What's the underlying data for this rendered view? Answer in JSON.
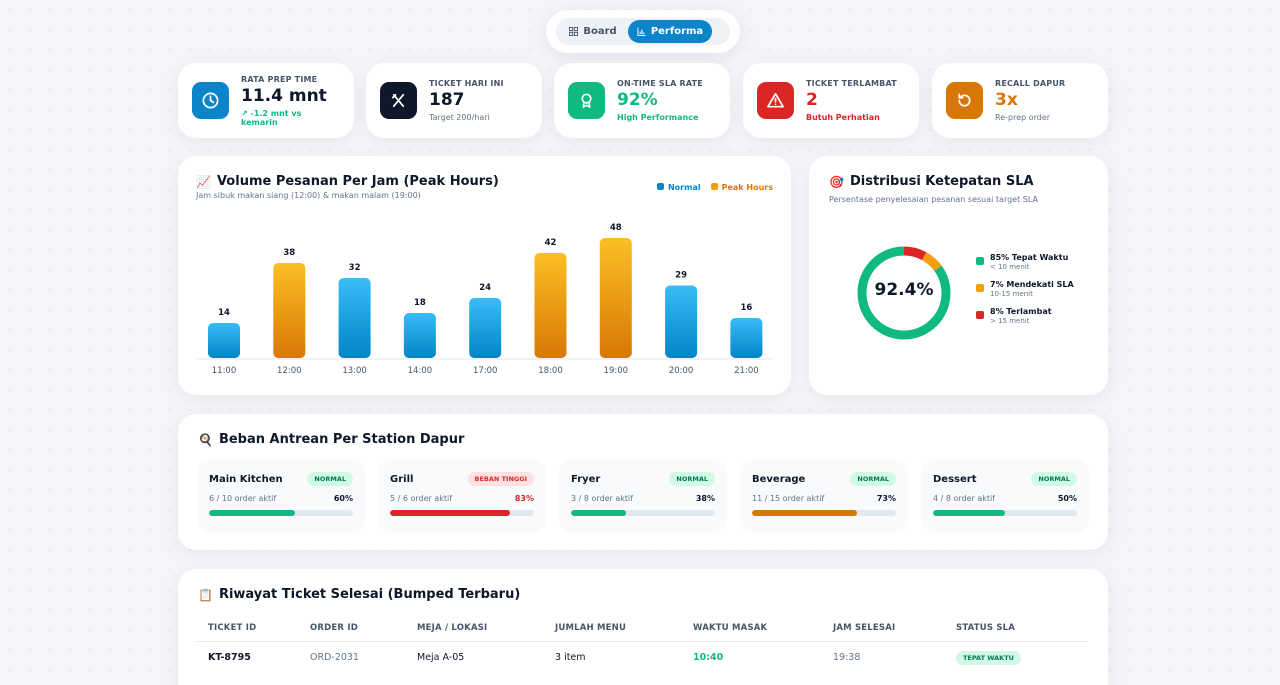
{
  "toggle": {
    "board_label": "Board",
    "perf_label": "Performa"
  },
  "kpis": [
    {
      "label": "RATA PREP TIME",
      "value": "11.4 mnt",
      "sub": "-1.2 mnt vs kemarin",
      "icon": "clock-icon",
      "color": "#0b84c9"
    },
    {
      "label": "TICKET HARI INI",
      "value": "187",
      "sub": "Target 200/hari",
      "icon": "utensils-icon",
      "color": "#0f172a"
    },
    {
      "label": "ON-TIME SLA RATE",
      "value": "92%",
      "sub": "High Performance",
      "icon": "award-icon",
      "color": "#10b981"
    },
    {
      "label": "TICKET TERLAMBAT",
      "value": "2",
      "sub": "Butuh Perhatian",
      "icon": "warning-icon",
      "color": "#dc2626"
    },
    {
      "label": "RECALL DAPUR",
      "value": "3x",
      "sub": "Re-prep order",
      "icon": "refresh-icon",
      "color": "#d97706"
    }
  ],
  "volume": {
    "title": "Volume Pesanan Per Jam (Peak Hours)",
    "subtitle": "Jam sibuk makan siang (12:00) & makan malam (19:00)",
    "legend_normal": "Normal",
    "legend_peak": "Peak Hours"
  },
  "chart_data": {
    "type": "bar",
    "categories": [
      "11:00",
      "12:00",
      "13:00",
      "14:00",
      "17:00",
      "18:00",
      "19:00",
      "20:00",
      "21:00"
    ],
    "values": [
      14,
      38,
      32,
      18,
      24,
      42,
      48,
      29,
      16
    ],
    "peak": [
      false,
      true,
      false,
      false,
      false,
      true,
      true,
      false,
      false
    ],
    "series": [
      {
        "name": "Normal",
        "color": "#0ea5e9"
      },
      {
        "name": "Peak Hours",
        "color": "#f59e0b"
      }
    ],
    "ylim": [
      0,
      48
    ],
    "grid": false
  },
  "sla": {
    "title": "Distribusi Ketepatan SLA",
    "subtitle": "Persentase penyelesaian pesanan sesuai target SLA",
    "center_value": "92.4%",
    "items": [
      {
        "label": "85% Tepat Waktu",
        "sub": "< 10 menit",
        "value": 85,
        "color": "#10b981"
      },
      {
        "label": "7% Mendekati SLA",
        "sub": "10-15 menit",
        "value": 7,
        "color": "#f59e0b"
      },
      {
        "label": "8% Terlambat",
        "sub": "> 15 menit",
        "value": 8,
        "color": "#dc2626"
      }
    ]
  },
  "stations": {
    "title": "Beban Antrean Per Station Dapur",
    "items": [
      {
        "name": "Main Kitchen",
        "badge": "NORMAL",
        "orders": "6 / 10 order aktif",
        "pct_label": "60%",
        "pct": 60,
        "status": "normal"
      },
      {
        "name": "Grill",
        "badge": "BEBAN TINGGI",
        "orders": "5 / 6 order aktif",
        "pct_label": "83%",
        "pct": 83,
        "status": "high"
      },
      {
        "name": "Fryer",
        "badge": "NORMAL",
        "orders": "3 / 8 order aktif",
        "pct_label": "38%",
        "pct": 38,
        "status": "normal"
      },
      {
        "name": "Beverage",
        "badge": "NORMAL",
        "orders": "11 / 15 order aktif",
        "pct_label": "73%",
        "pct": 73,
        "status": "warn"
      },
      {
        "name": "Dessert",
        "badge": "NORMAL",
        "orders": "4 / 8 order aktif",
        "pct_label": "50%",
        "pct": 50,
        "status": "normal"
      }
    ]
  },
  "history": {
    "title": "Riwayat Ticket Selesai (Bumped Terbaru)",
    "columns": [
      "TICKET ID",
      "ORDER ID",
      "MEJA / LOKASI",
      "JUMLAH MENU",
      "WAKTU MASAK",
      "JAM SELESAI",
      "STATUS SLA"
    ],
    "rows": [
      {
        "ticket": "KT-8795",
        "order": "ORD-2031",
        "meja": "Meja A-05",
        "menu": "3 item",
        "waktu": "10:40",
        "jam": "19:38",
        "status": "TEPAT WAKTU"
      }
    ]
  }
}
